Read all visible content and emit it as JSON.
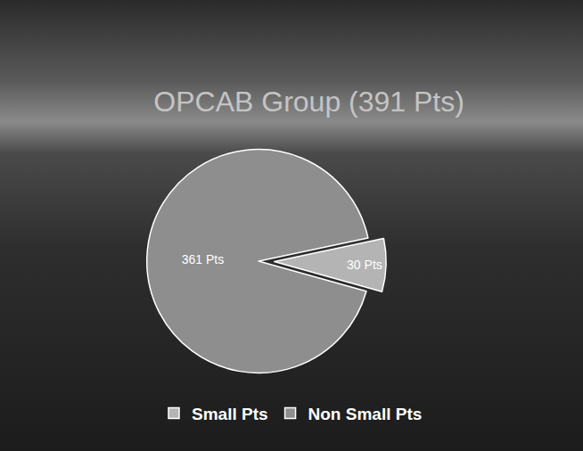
{
  "chart_data": {
    "type": "pie",
    "title": "OPCAB Group (391 Pts)",
    "categories": [
      "Small Pts",
      "Non Small Pts"
    ],
    "values": [
      30,
      361
    ],
    "value_labels": [
      "30 Pts",
      "361 Pts"
    ],
    "colors": [
      "#b4b4b4",
      "#8e8e8e"
    ],
    "data_labels": true,
    "legend": "bottom"
  }
}
